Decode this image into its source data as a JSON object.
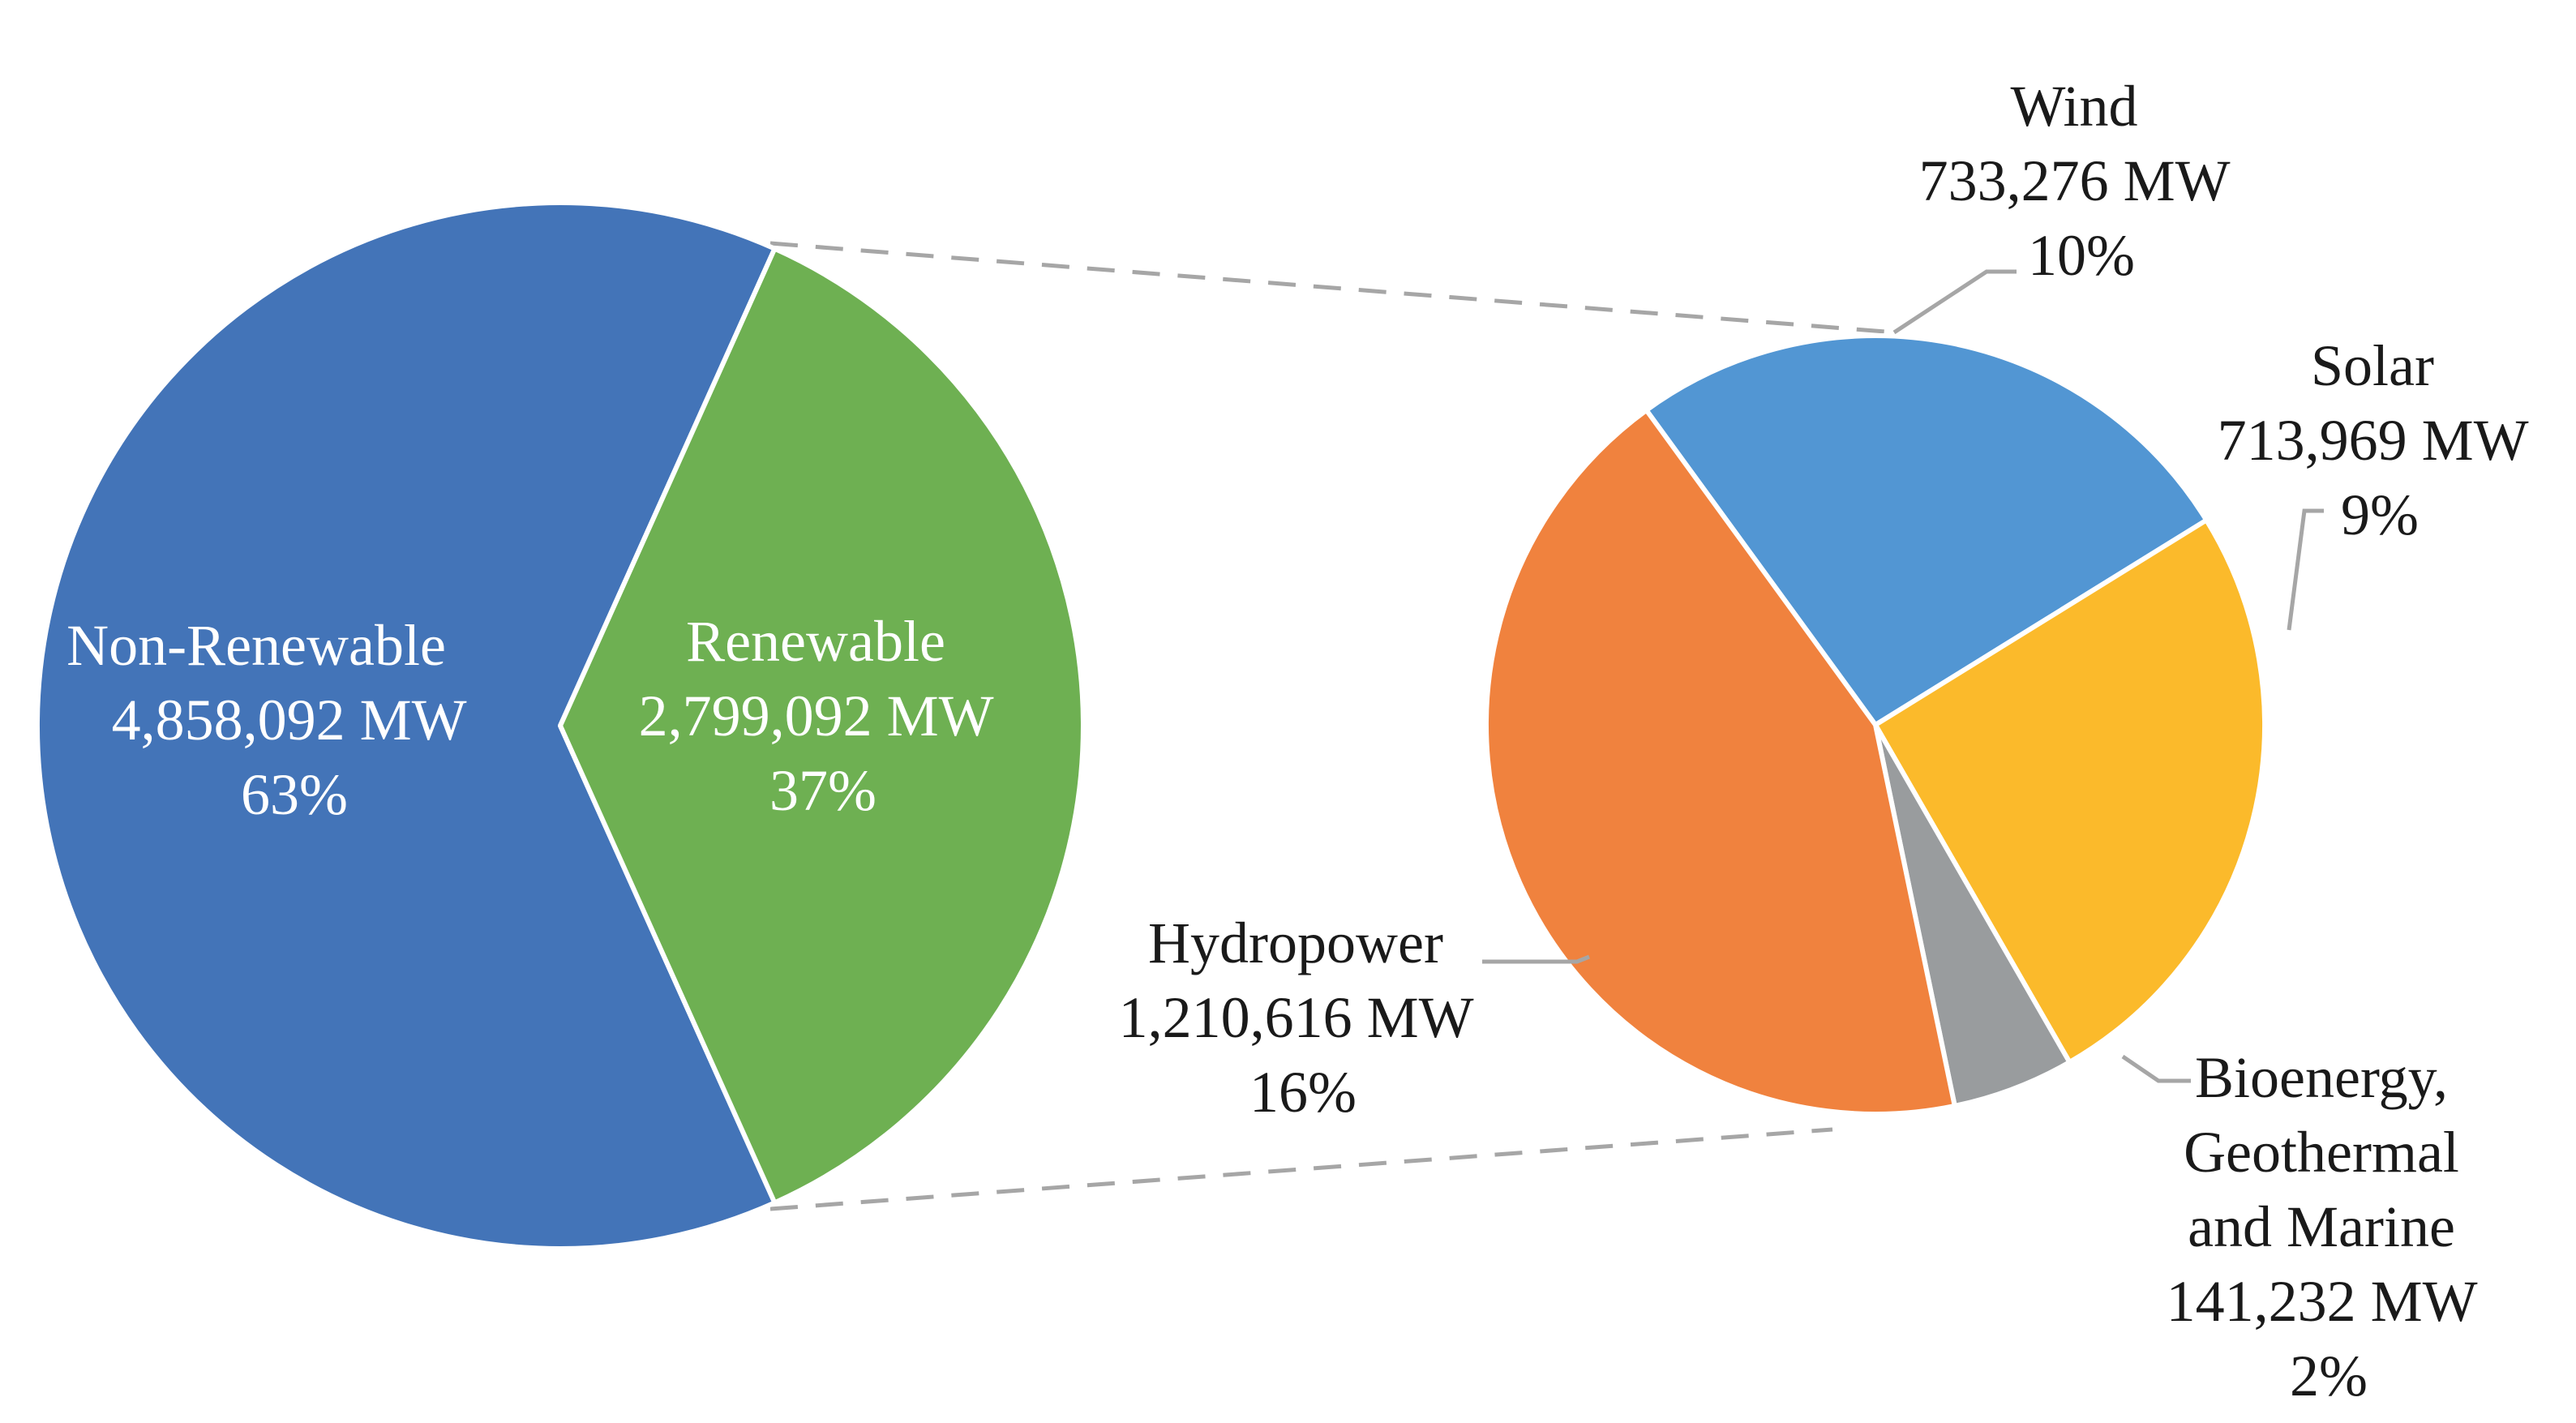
{
  "chart_data": [
    {
      "type": "pie",
      "slices": [
        {
          "label": "Non-Renewable",
          "value_text": "4,858,092 MW",
          "pct_text": "63%",
          "value": 4858092,
          "color": "#4374B8"
        },
        {
          "label": "Renewable",
          "value_text": "2,799,092 MW",
          "pct_text": "37%",
          "value": 2799092,
          "color": "#6EB052"
        }
      ]
    },
    {
      "type": "pie",
      "slices": [
        {
          "label": "Wind",
          "value_text": "733,276 MW",
          "pct_text": "10%",
          "value": 733276,
          "color": "#5296D3"
        },
        {
          "label": "Solar",
          "value_text": "713,969 MW",
          "pct_text": "9%",
          "value": 713969,
          "color": "#FBBA2B"
        },
        {
          "label": "Bioenergy, Geothermal and Marine",
          "label_lines": [
            "Bioenergy,",
            "Geothermal",
            "and Marine"
          ],
          "value_text": "141,232 MW",
          "pct_text": "2%",
          "value": 141232,
          "color": "#999C9E"
        },
        {
          "label": "Hydropower",
          "value_text": "1,210,616 MW",
          "pct_text": "16%",
          "value": 1210616,
          "color": "#F0823E"
        }
      ]
    }
  ],
  "colors": {
    "leader_line": "#A6A6A6",
    "connector_line": "#A6A6A6",
    "slice_border": "#ffffff"
  }
}
